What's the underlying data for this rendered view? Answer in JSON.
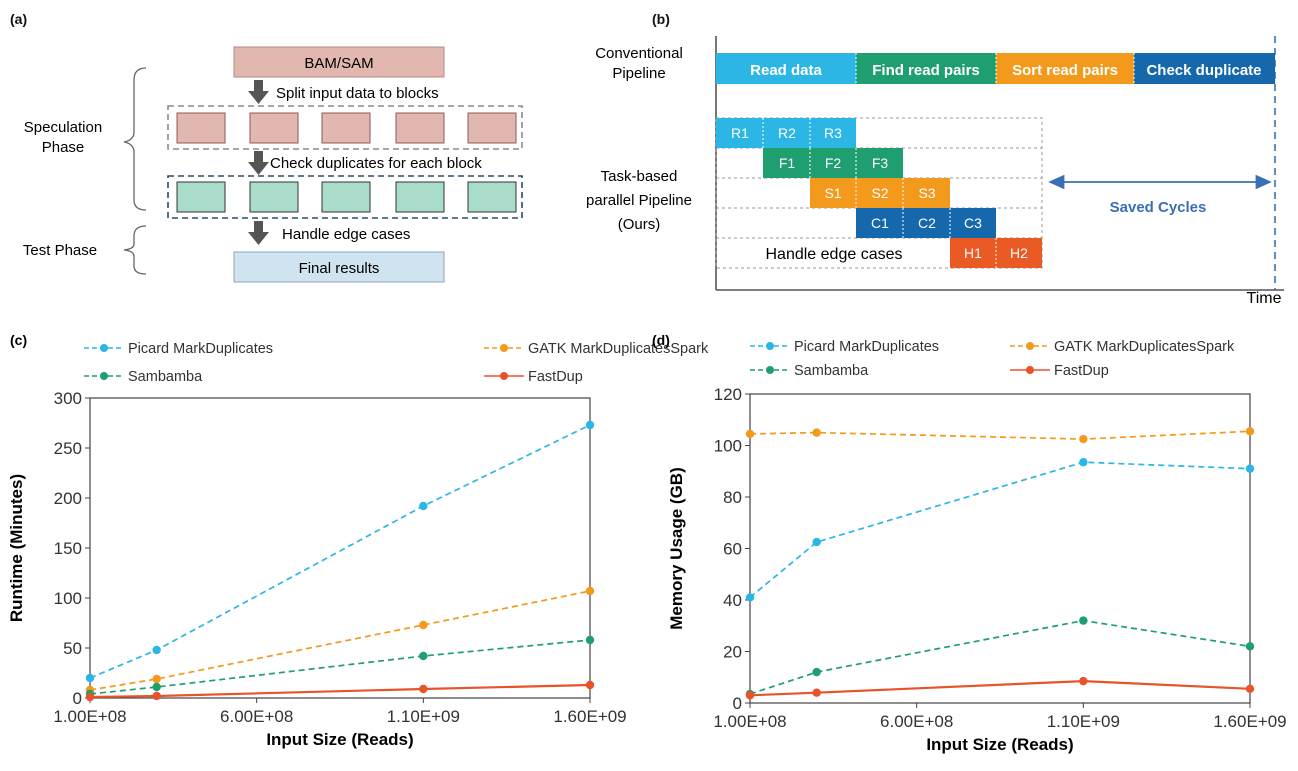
{
  "colors": {
    "picard": "#2bb6e6",
    "gatk": "#f39a1c",
    "sambamba": "#1f9e6f",
    "fastdup": "#e8532a",
    "bam_box": "#e2b7b0",
    "block_red": "#e2b7b0",
    "block_green": "#a9dccb",
    "final_box": "#cfe3f1",
    "read": "#2bb6e6",
    "find": "#1f9e6f",
    "sort": "#f39a1c",
    "check": "#1668ad",
    "handle": "#ea5a25",
    "saved": "#3a6fb6"
  },
  "panel_a": {
    "label": "(a)",
    "bam": "BAM/SAM",
    "split": "Split input data to blocks",
    "check": "Check duplicates for each block",
    "handle": "Handle edge cases",
    "final": "Final results",
    "speculation_line1": "Speculation",
    "speculation_line2": "Phase",
    "test": "Test Phase"
  },
  "panel_b": {
    "label": "(b)",
    "conv_line1": "Conventional",
    "conv_line2": "Pipeline",
    "stages": [
      "Read data",
      "Find read pairs",
      "Sort read pairs",
      "Check duplicate"
    ],
    "task_line1": "Task-based",
    "task_line2": "parallel Pipeline",
    "task_line3": "(Ours)",
    "rows": [
      [
        "R1",
        "R2",
        "R3"
      ],
      [
        "F1",
        "F2",
        "F3"
      ],
      [
        "S1",
        "S2",
        "S3"
      ],
      [
        "C1",
        "C2",
        "C3"
      ],
      [
        "H1",
        "H2"
      ]
    ],
    "handle_text": "Handle edge cases",
    "saved": "Saved Cycles",
    "time": "Time"
  },
  "chart_data": [
    {
      "type": "line",
      "panel": "(c)",
      "xlabel": "Input Size (Reads)",
      "ylabel": "Runtime (Minutes)",
      "xlim": [
        100000000,
        1600000000
      ],
      "ylim": [
        0,
        300
      ],
      "xticks": [
        100000000,
        600000000,
        1100000000,
        1600000000
      ],
      "xtick_labels": [
        "1.00E+08",
        "6.00E+08",
        "1.10E+09",
        "1.60E+09"
      ],
      "yticks": [
        0,
        50,
        100,
        150,
        200,
        250,
        300
      ],
      "legend": "top",
      "series": [
        {
          "name": "Picard MarkDuplicates",
          "x": [
            100000000,
            300000000,
            1100000000,
            1600000000
          ],
          "y": [
            20,
            48,
            192,
            273
          ],
          "dashed": true
        },
        {
          "name": "GATK MarkDuplicatesSpark",
          "x": [
            100000000,
            300000000,
            1100000000,
            1600000000
          ],
          "y": [
            8,
            19,
            73,
            107
          ],
          "dashed": true
        },
        {
          "name": "Sambamba",
          "x": [
            100000000,
            300000000,
            1100000000,
            1600000000
          ],
          "y": [
            4,
            11,
            42,
            58
          ],
          "dashed": true
        },
        {
          "name": "FastDup",
          "x": [
            100000000,
            300000000,
            1100000000,
            1600000000
          ],
          "y": [
            1,
            2,
            9,
            13
          ],
          "dashed": false
        }
      ]
    },
    {
      "type": "line",
      "panel": "(d)",
      "xlabel": "Input Size (Reads)",
      "ylabel": "Memory Usage (GB)",
      "xlim": [
        100000000,
        1600000000
      ],
      "ylim": [
        0,
        120
      ],
      "xticks": [
        100000000,
        600000000,
        1100000000,
        1600000000
      ],
      "xtick_labels": [
        "1.00E+08",
        "6.00E+08",
        "1.10E+09",
        "1.60E+09"
      ],
      "yticks": [
        0,
        20,
        40,
        60,
        80,
        100,
        120
      ],
      "legend": "top",
      "series": [
        {
          "name": "Picard MarkDuplicates",
          "x": [
            100000000,
            300000000,
            1100000000,
            1600000000
          ],
          "y": [
            41,
            62.5,
            93.5,
            91
          ],
          "dashed": true
        },
        {
          "name": "GATK MarkDuplicatesSpark",
          "x": [
            100000000,
            300000000,
            1100000000,
            1600000000
          ],
          "y": [
            104.5,
            105,
            102.5,
            105.5
          ],
          "dashed": true
        },
        {
          "name": "Sambamba",
          "x": [
            100000000,
            300000000,
            1100000000,
            1600000000
          ],
          "y": [
            3.5,
            12,
            32,
            22
          ],
          "dashed": true
        },
        {
          "name": "FastDup",
          "x": [
            100000000,
            300000000,
            1100000000,
            1600000000
          ],
          "y": [
            3,
            4,
            8.5,
            5.5
          ],
          "dashed": false
        }
      ]
    }
  ]
}
